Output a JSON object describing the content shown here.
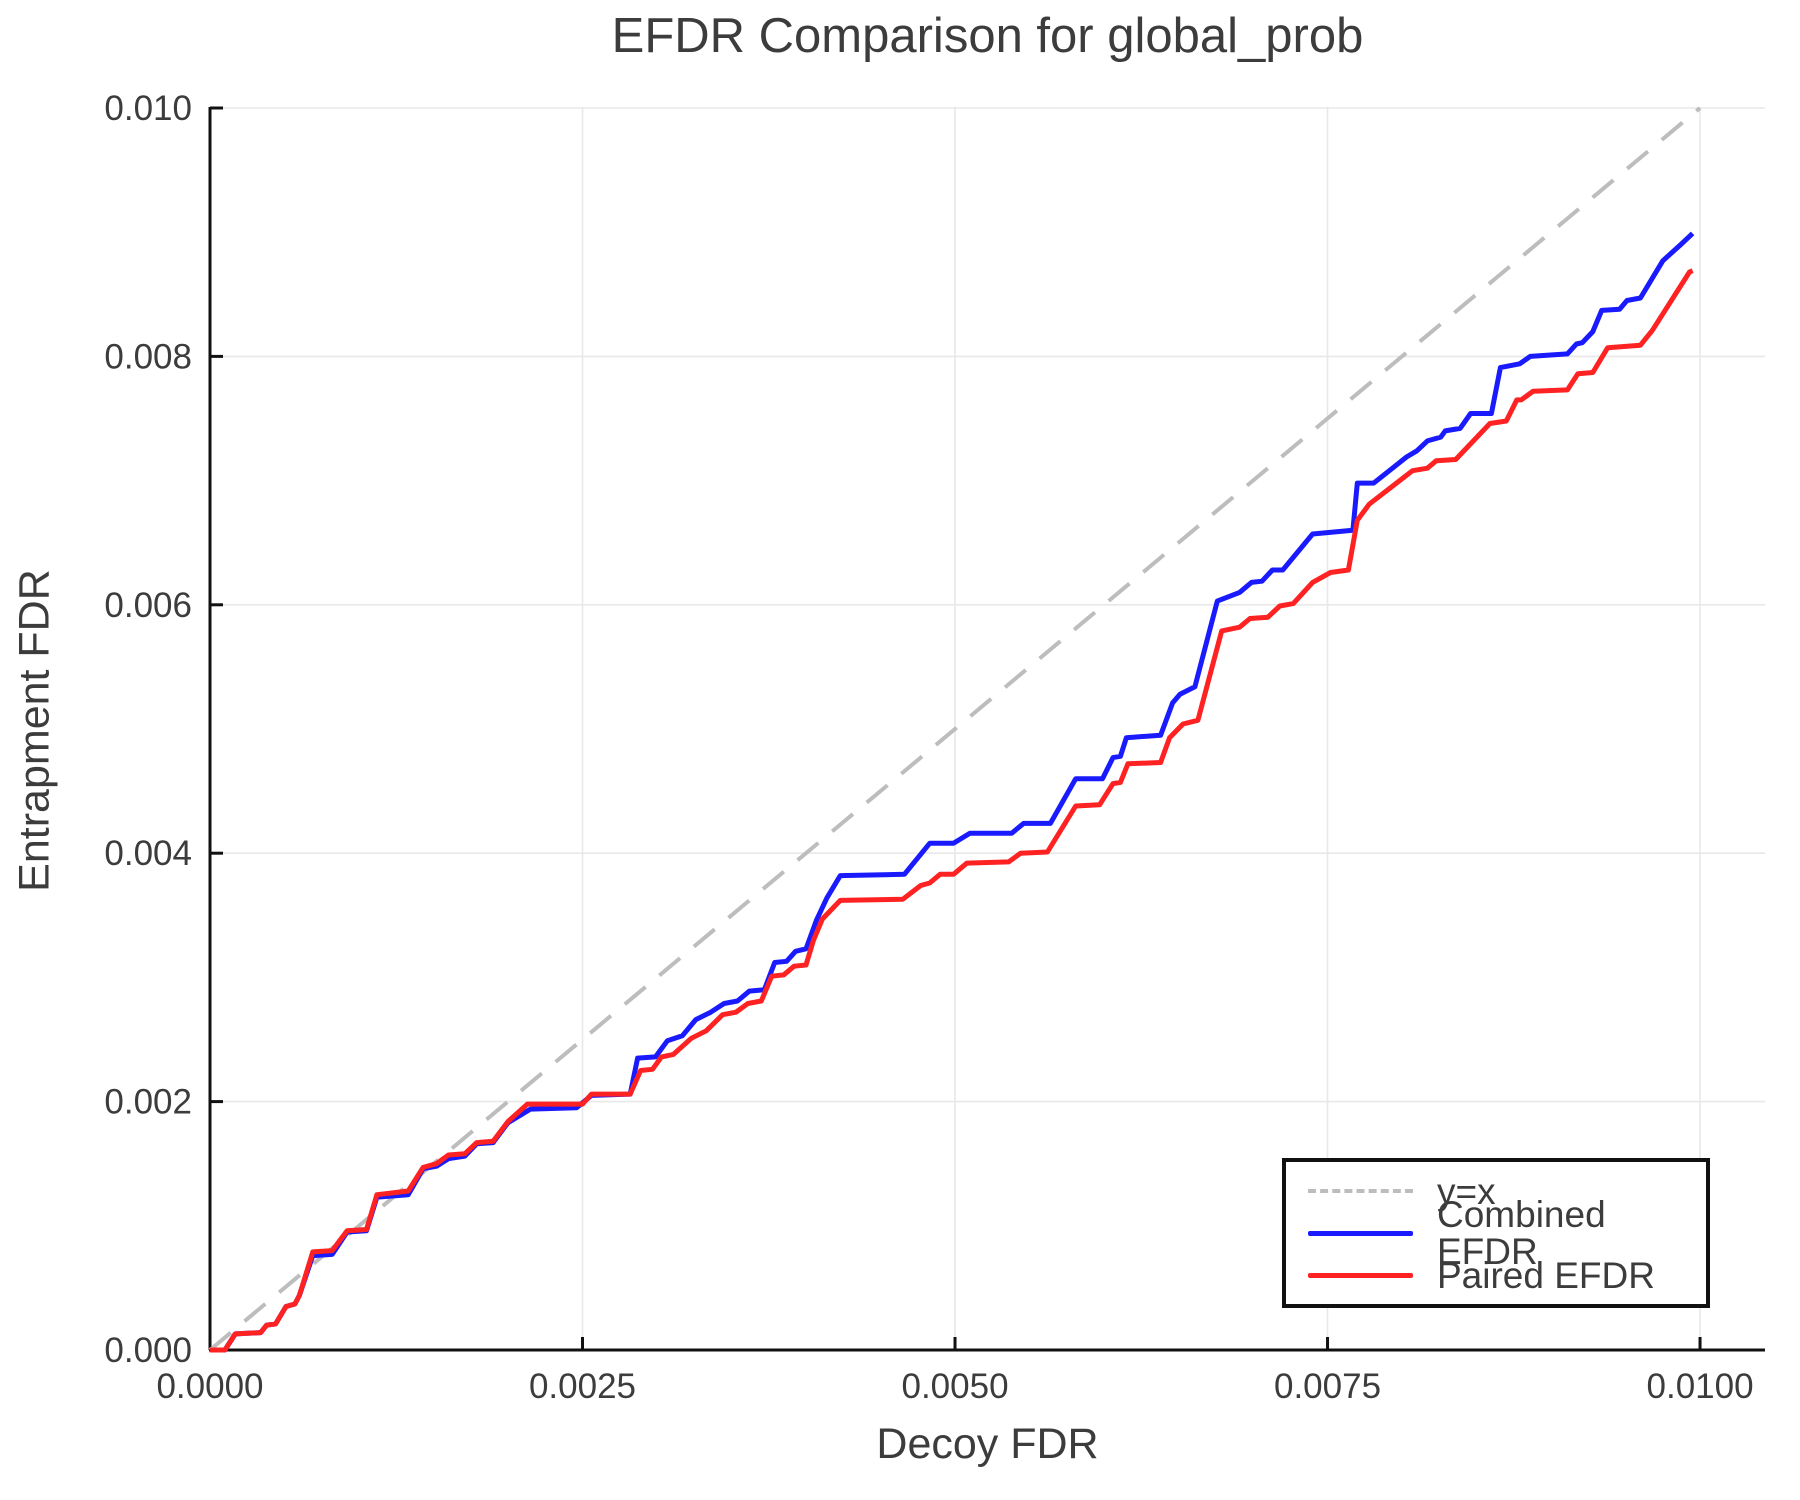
{
  "chart_data": {
    "type": "line",
    "title": "EFDR Comparison for global_prob",
    "xlabel": "Decoy FDR",
    "ylabel": "Entrapment FDR",
    "xlim": [
      0,
      0.010436
    ],
    "ylim": [
      0,
      0.010008
    ],
    "grid": true,
    "legend_position": "lower right inside",
    "x_ticks": [
      {
        "value": 0.0,
        "label": "0.0000"
      },
      {
        "value": 0.0025,
        "label": "0.0025"
      },
      {
        "value": 0.005,
        "label": "0.0050"
      },
      {
        "value": 0.0075,
        "label": "0.0075"
      },
      {
        "value": 0.01,
        "label": "0.0100"
      }
    ],
    "y_ticks": [
      {
        "value": 0.0,
        "label": "0.000"
      },
      {
        "value": 0.002,
        "label": "0.002"
      },
      {
        "value": 0.004,
        "label": "0.004"
      },
      {
        "value": 0.006,
        "label": "0.006"
      },
      {
        "value": 0.008,
        "label": "0.008"
      },
      {
        "value": 0.01,
        "label": "0.010"
      }
    ],
    "colors": {
      "reference": "#bdbdbd",
      "combined": "#1a1aff",
      "paired": "#ff2222",
      "grid": "#e8e8e8",
      "axis": "#111111",
      "text": "#3c3c3c"
    },
    "series": [
      {
        "name": "y=x",
        "style": "dashed",
        "color_key": "reference",
        "width": 4,
        "points": [
          [
            0,
            0
          ],
          [
            0.01,
            0.01
          ]
        ]
      },
      {
        "name": "Combined EFDR",
        "style": "solid",
        "color_key": "combined",
        "width": 5,
        "points": [
          [
            0.0,
            0.0
          ],
          [
            0.0001,
            0.0
          ],
          [
            0.00017,
            0.00013
          ],
          [
            0.00034,
            0.00014
          ],
          [
            0.00038,
            0.0002
          ],
          [
            0.00044,
            0.00021
          ],
          [
            0.00051,
            0.00035
          ],
          [
            0.00057,
            0.00037
          ],
          [
            0.0006,
            0.00044
          ],
          [
            0.00069,
            0.00076
          ],
          [
            0.00082,
            0.00077
          ],
          [
            0.00092,
            0.00095
          ],
          [
            0.00105,
            0.00096
          ],
          [
            0.00112,
            0.00123
          ],
          [
            0.00133,
            0.00125
          ],
          [
            0.00143,
            0.00146
          ],
          [
            0.00152,
            0.00148
          ],
          [
            0.0016,
            0.00154
          ],
          [
            0.00171,
            0.00156
          ],
          [
            0.00179,
            0.00166
          ],
          [
            0.0019,
            0.00167
          ],
          [
            0.002,
            0.00183
          ],
          [
            0.00215,
            0.00194
          ],
          [
            0.00246,
            0.00195
          ],
          [
            0.00256,
            0.00205
          ],
          [
            0.00282,
            0.00206
          ],
          [
            0.00287,
            0.00235
          ],
          [
            0.00299,
            0.00236
          ],
          [
            0.00307,
            0.00249
          ],
          [
            0.00317,
            0.00253
          ],
          [
            0.00326,
            0.00266
          ],
          [
            0.00336,
            0.00272
          ],
          [
            0.00345,
            0.00279
          ],
          [
            0.00354,
            0.00281
          ],
          [
            0.00362,
            0.00289
          ],
          [
            0.00372,
            0.0029
          ],
          [
            0.00379,
            0.00312
          ],
          [
            0.00387,
            0.00313
          ],
          [
            0.00393,
            0.00321
          ],
          [
            0.004,
            0.00323
          ],
          [
            0.00407,
            0.00346
          ],
          [
            0.00414,
            0.00364
          ],
          [
            0.00423,
            0.00382
          ],
          [
            0.00466,
            0.00383
          ],
          [
            0.00483,
            0.00408
          ],
          [
            0.00499,
            0.00408
          ],
          [
            0.0051,
            0.00416
          ],
          [
            0.00538,
            0.00416
          ],
          [
            0.00546,
            0.00424
          ],
          [
            0.00564,
            0.00424
          ],
          [
            0.00581,
            0.0046
          ],
          [
            0.00599,
            0.0046
          ],
          [
            0.00606,
            0.00477
          ],
          [
            0.00611,
            0.00478
          ],
          [
            0.00615,
            0.00493
          ],
          [
            0.00638,
            0.00495
          ],
          [
            0.00646,
            0.00521
          ],
          [
            0.00651,
            0.00528
          ],
          [
            0.00661,
            0.00534
          ],
          [
            0.00676,
            0.00603
          ],
          [
            0.00691,
            0.0061
          ],
          [
            0.00699,
            0.00618
          ],
          [
            0.00706,
            0.00619
          ],
          [
            0.00713,
            0.00628
          ],
          [
            0.0072,
            0.00628
          ],
          [
            0.0074,
            0.00657
          ],
          [
            0.00758,
            0.00659
          ],
          [
            0.00767,
            0.0066
          ],
          [
            0.0077,
            0.00698
          ],
          [
            0.00781,
            0.00698
          ],
          [
            0.00803,
            0.00719
          ],
          [
            0.0081,
            0.00724
          ],
          [
            0.00817,
            0.00732
          ],
          [
            0.00826,
            0.00735
          ],
          [
            0.00829,
            0.0074
          ],
          [
            0.00839,
            0.00742
          ],
          [
            0.00846,
            0.00754
          ],
          [
            0.0086,
            0.00754
          ],
          [
            0.00866,
            0.00791
          ],
          [
            0.00879,
            0.00794
          ],
          [
            0.00886,
            0.008
          ],
          [
            0.00911,
            0.00802
          ],
          [
            0.00917,
            0.0081
          ],
          [
            0.00921,
            0.00811
          ],
          [
            0.00928,
            0.0082
          ],
          [
            0.00934,
            0.00837
          ],
          [
            0.00946,
            0.00838
          ],
          [
            0.00951,
            0.00845
          ],
          [
            0.0096,
            0.00847
          ],
          [
            0.00975,
            0.00877
          ],
          [
            0.00987,
            0.0089
          ],
          [
            0.00995,
            0.00899
          ]
        ]
      },
      {
        "name": "Paired EFDR",
        "style": "solid",
        "color_key": "paired",
        "width": 5,
        "points": [
          [
            0.0,
            0.0
          ],
          [
            0.0001,
            0.0
          ],
          [
            0.00017,
            0.00013
          ],
          [
            0.00034,
            0.00014
          ],
          [
            0.00038,
            0.0002
          ],
          [
            0.00044,
            0.00021
          ],
          [
            0.00051,
            0.00035
          ],
          [
            0.00057,
            0.00037
          ],
          [
            0.0006,
            0.00044
          ],
          [
            0.00069,
            0.00079
          ],
          [
            0.00082,
            0.0008
          ],
          [
            0.00092,
            0.00096
          ],
          [
            0.00105,
            0.00097
          ],
          [
            0.00112,
            0.00125
          ],
          [
            0.00133,
            0.00128
          ],
          [
            0.00143,
            0.00147
          ],
          [
            0.00152,
            0.0015
          ],
          [
            0.0016,
            0.00157
          ],
          [
            0.00171,
            0.00158
          ],
          [
            0.00179,
            0.00167
          ],
          [
            0.0019,
            0.00168
          ],
          [
            0.002,
            0.00184
          ],
          [
            0.00213,
            0.00198
          ],
          [
            0.0025,
            0.00198
          ],
          [
            0.00256,
            0.00206
          ],
          [
            0.00282,
            0.00206
          ],
          [
            0.00289,
            0.00225
          ],
          [
            0.00297,
            0.00226
          ],
          [
            0.00303,
            0.00236
          ],
          [
            0.00311,
            0.00238
          ],
          [
            0.00323,
            0.00251
          ],
          [
            0.00333,
            0.00257
          ],
          [
            0.00344,
            0.0027
          ],
          [
            0.00353,
            0.00272
          ],
          [
            0.00361,
            0.00279
          ],
          [
            0.0037,
            0.00281
          ],
          [
            0.00377,
            0.00301
          ],
          [
            0.00385,
            0.00302
          ],
          [
            0.00392,
            0.00309
          ],
          [
            0.004,
            0.0031
          ],
          [
            0.00405,
            0.0033
          ],
          [
            0.00411,
            0.00347
          ],
          [
            0.00423,
            0.00362
          ],
          [
            0.00465,
            0.00363
          ],
          [
            0.00477,
            0.00374
          ],
          [
            0.00483,
            0.00376
          ],
          [
            0.0049,
            0.00383
          ],
          [
            0.00499,
            0.00383
          ],
          [
            0.00508,
            0.00392
          ],
          [
            0.00536,
            0.00393
          ],
          [
            0.00544,
            0.004
          ],
          [
            0.00562,
            0.00401
          ],
          [
            0.00581,
            0.00438
          ],
          [
            0.00597,
            0.00439
          ],
          [
            0.00606,
            0.00456
          ],
          [
            0.00611,
            0.00457
          ],
          [
            0.00616,
            0.00472
          ],
          [
            0.00638,
            0.00473
          ],
          [
            0.00644,
            0.00493
          ],
          [
            0.00653,
            0.00504
          ],
          [
            0.00663,
            0.00507
          ],
          [
            0.00679,
            0.00579
          ],
          [
            0.00691,
            0.00582
          ],
          [
            0.00698,
            0.00589
          ],
          [
            0.0071,
            0.0059
          ],
          [
            0.00718,
            0.00599
          ],
          [
            0.00727,
            0.00601
          ],
          [
            0.0074,
            0.00618
          ],
          [
            0.00752,
            0.00626
          ],
          [
            0.00764,
            0.00628
          ],
          [
            0.0077,
            0.00668
          ],
          [
            0.00778,
            0.00681
          ],
          [
            0.00807,
            0.00708
          ],
          [
            0.00817,
            0.0071
          ],
          [
            0.00823,
            0.00716
          ],
          [
            0.00836,
            0.00717
          ],
          [
            0.00859,
            0.00746
          ],
          [
            0.0087,
            0.00748
          ],
          [
            0.00877,
            0.00765
          ],
          [
            0.0088,
            0.00765
          ],
          [
            0.00888,
            0.00772
          ],
          [
            0.00911,
            0.00773
          ],
          [
            0.00918,
            0.00786
          ],
          [
            0.00928,
            0.00787
          ],
          [
            0.00938,
            0.00807
          ],
          [
            0.0096,
            0.00809
          ],
          [
            0.00968,
            0.00821
          ],
          [
            0.00993,
            0.00868
          ],
          [
            0.00995,
            0.00869
          ]
        ]
      }
    ],
    "legend": [
      {
        "label": "y=x",
        "swatch": "dashed-gray-line"
      },
      {
        "label": "Combined EFDR",
        "swatch": "solid-blue-line"
      },
      {
        "label": "Paired EFDR",
        "swatch": "solid-red-line"
      }
    ]
  }
}
